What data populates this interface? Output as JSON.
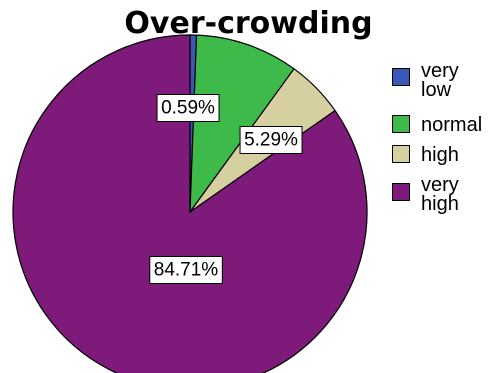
{
  "chart_data": {
    "type": "pie",
    "title": "Over-crowding",
    "categories": [
      "very low",
      "normal",
      "high",
      "very high"
    ],
    "values": [
      0.59,
      9.41,
      5.29,
      84.71
    ],
    "data_labels": [
      "0.59%",
      "",
      "5.29%",
      "84.71%"
    ],
    "colors": [
      "#3b57b9",
      "#3dba49",
      "#d6d0a0",
      "#7d1a7a"
    ],
    "legend_position": "right",
    "legend_labels": [
      "very\nlow",
      "normal",
      "high",
      "very\nhigh"
    ]
  }
}
